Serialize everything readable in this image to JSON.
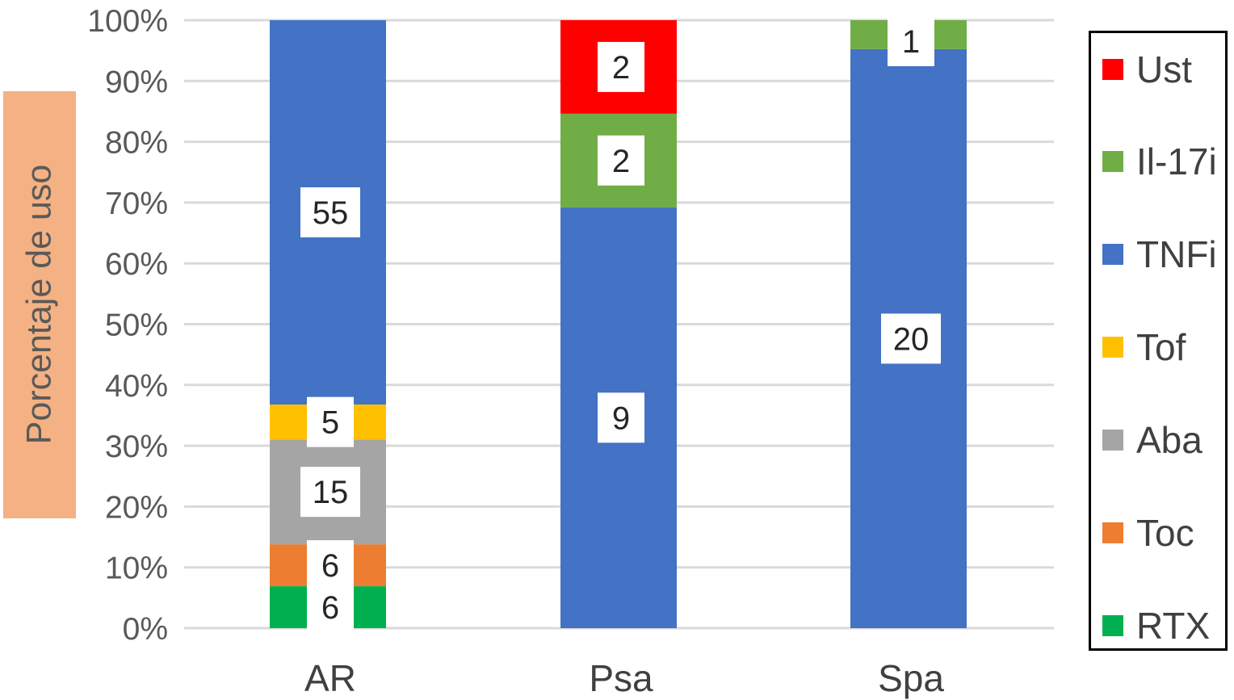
{
  "chart_data": {
    "type": "bar",
    "stacked": true,
    "normalized": true,
    "title": "",
    "xlabel": "",
    "ylabel": "Porcentaje de uso",
    "ylim": [
      0,
      100
    ],
    "yticks": [
      "0%",
      "10%",
      "20%",
      "30%",
      "40%",
      "50%",
      "60%",
      "70%",
      "80%",
      "90%",
      "100%"
    ],
    "grid": true,
    "legend_position": "right",
    "categories": [
      "AR",
      "Psa",
      "Spa"
    ],
    "series": [
      {
        "name": "RTX",
        "color": "#00b050",
        "values": [
          6,
          0,
          0
        ],
        "labels": [
          "6",
          "",
          ""
        ]
      },
      {
        "name": "Toc",
        "color": "#ed7d31",
        "values": [
          6,
          0,
          0
        ],
        "labels": [
          "6",
          "",
          ""
        ]
      },
      {
        "name": "Aba",
        "color": "#a5a5a5",
        "values": [
          15,
          0,
          0
        ],
        "labels": [
          "15",
          "",
          ""
        ]
      },
      {
        "name": "Tof",
        "color": "#ffc000",
        "values": [
          5,
          0,
          0
        ],
        "labels": [
          "5",
          "",
          ""
        ]
      },
      {
        "name": "TNFi",
        "color": "#4472c4",
        "values": [
          55,
          9,
          20
        ],
        "labels": [
          "55",
          "9",
          "20"
        ]
      },
      {
        "name": "Il-17i",
        "color": "#70ad47",
        "values": [
          0,
          2,
          1
        ],
        "labels": [
          "",
          "2",
          "1"
        ]
      },
      {
        "name": "Ust",
        "color": "#ff0000",
        "values": [
          0,
          2,
          0
        ],
        "labels": [
          "",
          "2",
          ""
        ]
      }
    ],
    "legend_order": [
      "Ust",
      "Il-17i",
      "TNFi",
      "Tof",
      "Aba",
      "Toc",
      "RTX"
    ]
  }
}
